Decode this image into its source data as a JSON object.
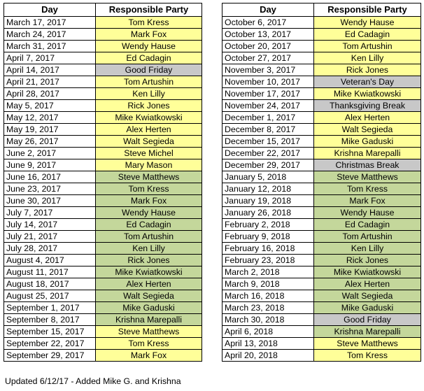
{
  "headers": {
    "day": "Day",
    "party": "Responsible Party"
  },
  "colors": {
    "yellow": "#ffff99",
    "gray": "#c8c8c8",
    "green": "#c4d79b"
  },
  "left_table": [
    {
      "day": "March 17, 2017",
      "party": "Tom Kress",
      "color": "yellow"
    },
    {
      "day": "March 24, 2017",
      "party": "Mark Fox",
      "color": "yellow"
    },
    {
      "day": "March 31, 2017",
      "party": "Wendy Hause",
      "color": "yellow"
    },
    {
      "day": "April 7, 2017",
      "party": "Ed Cadagin",
      "color": "yellow"
    },
    {
      "day": "April 14, 2017",
      "party": "Good Friday",
      "color": "gray"
    },
    {
      "day": "April 21, 2017",
      "party": "Tom Artushin",
      "color": "yellow"
    },
    {
      "day": "April 28, 2017",
      "party": "Ken Lilly",
      "color": "yellow"
    },
    {
      "day": "May 5, 2017",
      "party": "Rick Jones",
      "color": "yellow"
    },
    {
      "day": "May 12, 2017",
      "party": "Mike Kwiatkowski",
      "color": "yellow"
    },
    {
      "day": "May 19, 2017",
      "party": "Alex Herten",
      "color": "yellow"
    },
    {
      "day": "May 26, 2017",
      "party": "Walt Segieda",
      "color": "yellow"
    },
    {
      "day": "June 2, 2017",
      "party": "Steve Michel",
      "color": "yellow"
    },
    {
      "day": "June 9, 2017",
      "party": "Mary Mason",
      "color": "yellow"
    },
    {
      "day": "June 16, 2017",
      "party": "Steve Matthews",
      "color": "green"
    },
    {
      "day": "June 23, 2017",
      "party": "Tom Kress",
      "color": "green"
    },
    {
      "day": "June 30, 2017",
      "party": "Mark Fox",
      "color": "green"
    },
    {
      "day": "July 7, 2017",
      "party": "Wendy Hause",
      "color": "green"
    },
    {
      "day": "July 14, 2017",
      "party": "Ed Cadagin",
      "color": "green"
    },
    {
      "day": "July 21, 2017",
      "party": "Tom Artushin",
      "color": "green"
    },
    {
      "day": "July 28, 2017",
      "party": "Ken Lilly",
      "color": "green"
    },
    {
      "day": "August 4, 2017",
      "party": "Rick Jones",
      "color": "green"
    },
    {
      "day": "August 11, 2017",
      "party": "Mike Kwiatkowski",
      "color": "green"
    },
    {
      "day": "August 18, 2017",
      "party": "Alex Herten",
      "color": "green"
    },
    {
      "day": "August 25, 2017",
      "party": "Walt Segieda",
      "color": "green"
    },
    {
      "day": "September 1, 2017",
      "party": "Mike Gaduski",
      "color": "green"
    },
    {
      "day": "September 8, 2017",
      "party": "Krishna Marepalli",
      "color": "green"
    },
    {
      "day": "September 15, 2017",
      "party": "Steve Matthews",
      "color": "yellow"
    },
    {
      "day": "September 22, 2017",
      "party": "Tom Kress",
      "color": "yellow"
    },
    {
      "day": "September 29, 2017",
      "party": "Mark Fox",
      "color": "yellow"
    }
  ],
  "right_table": [
    {
      "day": "October 6, 2017",
      "party": "Wendy Hause",
      "color": "yellow"
    },
    {
      "day": "October 13, 2017",
      "party": "Ed Cadagin",
      "color": "yellow"
    },
    {
      "day": "October 20, 2017",
      "party": "Tom Artushin",
      "color": "yellow"
    },
    {
      "day": "October 27, 2017",
      "party": "Ken Lilly",
      "color": "yellow"
    },
    {
      "day": "November 3, 2017",
      "party": "Rick Jones",
      "color": "yellow"
    },
    {
      "day": "November 10, 2017",
      "party": "Veteran's Day",
      "color": "gray"
    },
    {
      "day": "November 17, 2017",
      "party": "Mike Kwiatkowski",
      "color": "yellow"
    },
    {
      "day": "November 24, 2017",
      "party": "Thanksgiving Break",
      "color": "gray"
    },
    {
      "day": "December 1, 2017",
      "party": "Alex Herten",
      "color": "yellow"
    },
    {
      "day": "December 8, 2017",
      "party": "Walt Segieda",
      "color": "yellow"
    },
    {
      "day": "December 15, 2017",
      "party": "Mike Gaduski",
      "color": "yellow"
    },
    {
      "day": "December 22, 2017",
      "party": "Krishna Marepalli",
      "color": "yellow"
    },
    {
      "day": "December 29, 2017",
      "party": "Christmas Break",
      "color": "gray"
    },
    {
      "day": "January 5, 2018",
      "party": "Steve Matthews",
      "color": "green"
    },
    {
      "day": "January 12, 2018",
      "party": "Tom Kress",
      "color": "green"
    },
    {
      "day": "January 19, 2018",
      "party": "Mark Fox",
      "color": "green"
    },
    {
      "day": "January 26, 2018",
      "party": "Wendy Hause",
      "color": "green"
    },
    {
      "day": "February 2, 2018",
      "party": "Ed Cadagin",
      "color": "green"
    },
    {
      "day": "February 9, 2018",
      "party": "Tom Artushin",
      "color": "green"
    },
    {
      "day": "February 16, 2018",
      "party": "Ken Lilly",
      "color": "green"
    },
    {
      "day": "February 23, 2018",
      "party": "Rick Jones",
      "color": "green"
    },
    {
      "day": "March 2, 2018",
      "party": "Mike Kwiatkowski",
      "color": "green"
    },
    {
      "day": "March 9, 2018",
      "party": "Alex Herten",
      "color": "green"
    },
    {
      "day": "March 16, 2018",
      "party": "Walt Segieda",
      "color": "green"
    },
    {
      "day": "March 23, 2018",
      "party": "Mike Gaduski",
      "color": "green"
    },
    {
      "day": "March 30, 2018",
      "party": "Good Friday",
      "color": "gray"
    },
    {
      "day": "April 6, 2018",
      "party": "Krishna Marepalli",
      "color": "green"
    },
    {
      "day": "April 13, 2018",
      "party": "Steve Matthews",
      "color": "yellow"
    },
    {
      "day": "April 20, 2018",
      "party": "Tom Kress",
      "color": "yellow"
    }
  ],
  "footnote": "Updated 6/12/17 - Added Mike G. and Krishna"
}
